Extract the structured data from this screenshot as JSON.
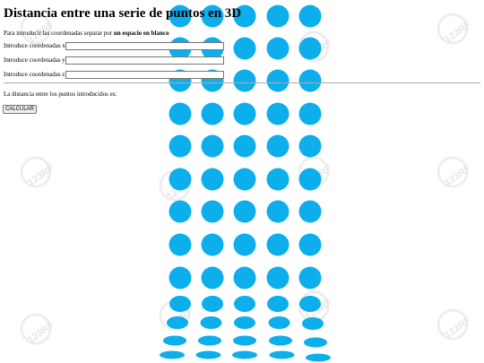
{
  "header": {
    "title": "Distancia entre una serie de puntos en 3D"
  },
  "instructions": {
    "text": "Para introducir las coordenadas separar por ",
    "bold": "un espacio en blanco"
  },
  "form": {
    "fields": [
      {
        "label": "Introduce coordenadas x:"
      },
      {
        "label": "Introduce coordenadas y:"
      },
      {
        "label": "Introduce coordenadas z:"
      }
    ],
    "result_label": "La distancia entre los puntos introducidos es:",
    "button": "CALCULAR"
  },
  "background": {
    "watermark": "123RF"
  }
}
